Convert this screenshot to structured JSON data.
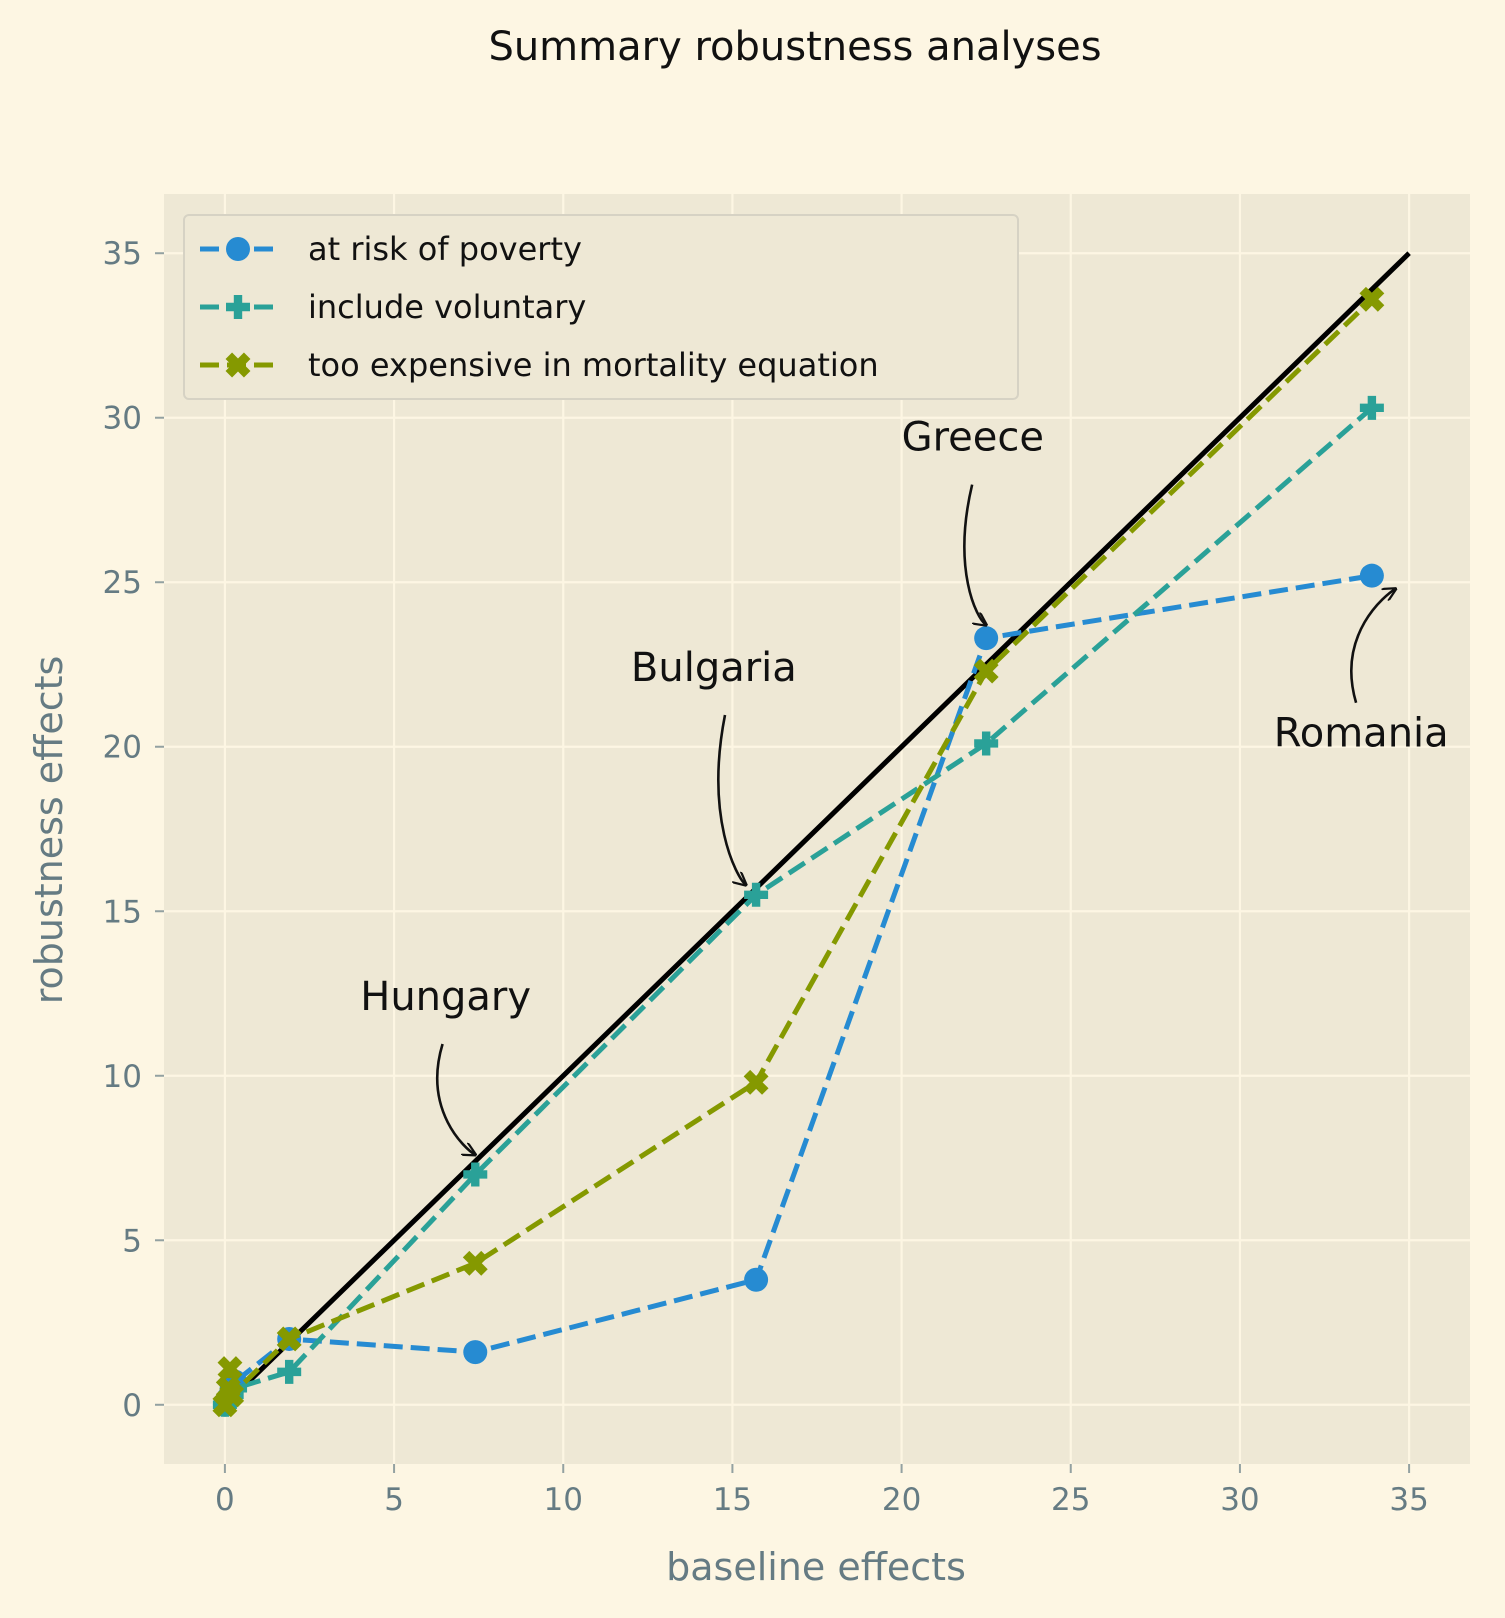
{
  "chart_data": {
    "type": "line",
    "title": "Summary robustness analyses",
    "xlabel": "baseline effects",
    "ylabel": "robustness effects",
    "xlim": [
      -1.8,
      36.8
    ],
    "ylim": [
      -1.8,
      36.8
    ],
    "xticks": [
      0,
      5,
      10,
      15,
      20,
      25,
      30,
      35
    ],
    "yticks": [
      0,
      5,
      10,
      15,
      20,
      25,
      30,
      35
    ],
    "grid": true,
    "legend_position": "top-left",
    "reference_line": {
      "x": [
        0,
        35
      ],
      "y": [
        0,
        35
      ],
      "color": "#000000"
    },
    "series": [
      {
        "name": "at risk of poverty",
        "color": "#268bd2",
        "marker": "circle",
        "x": [
          0,
          0.1,
          0.2,
          0.3,
          1.9,
          7.4,
          15.7,
          22.5,
          33.9
        ],
        "y": [
          0,
          0.2,
          0.5,
          0.7,
          2.0,
          1.6,
          3.8,
          23.3,
          25.2
        ]
      },
      {
        "name": "include voluntary",
        "color": "#2aa198",
        "marker": "plus",
        "x": [
          0,
          0.1,
          0.2,
          0.3,
          1.9,
          7.4,
          15.7,
          22.5,
          33.9
        ],
        "y": [
          0,
          0.2,
          0.3,
          0.5,
          1.0,
          7.0,
          15.5,
          20.1,
          30.3
        ]
      },
      {
        "name": "too expensive in mortality equation",
        "color": "#859900",
        "marker": "x",
        "x": [
          0,
          0.1,
          0.15,
          0.2,
          1.9,
          7.4,
          15.7,
          22.5,
          33.9
        ],
        "y": [
          0,
          0.5,
          1.1,
          0.3,
          2.0,
          4.3,
          9.8,
          22.3,
          33.6
        ]
      }
    ],
    "annotations": [
      {
        "text": "Hungary",
        "text_at": [
          4.0,
          12.0
        ],
        "point": [
          7.4,
          7.6
        ]
      },
      {
        "text": "Bulgaria",
        "text_at": [
          12.0,
          22.0
        ],
        "point": [
          15.4,
          15.8
        ]
      },
      {
        "text": "Greece",
        "text_at": [
          20.0,
          29.0
        ],
        "point": [
          22.5,
          23.7
        ]
      },
      {
        "text": "Romania",
        "text_at": [
          31.0,
          20.0
        ],
        "point": [
          34.6,
          24.8
        ]
      }
    ]
  }
}
